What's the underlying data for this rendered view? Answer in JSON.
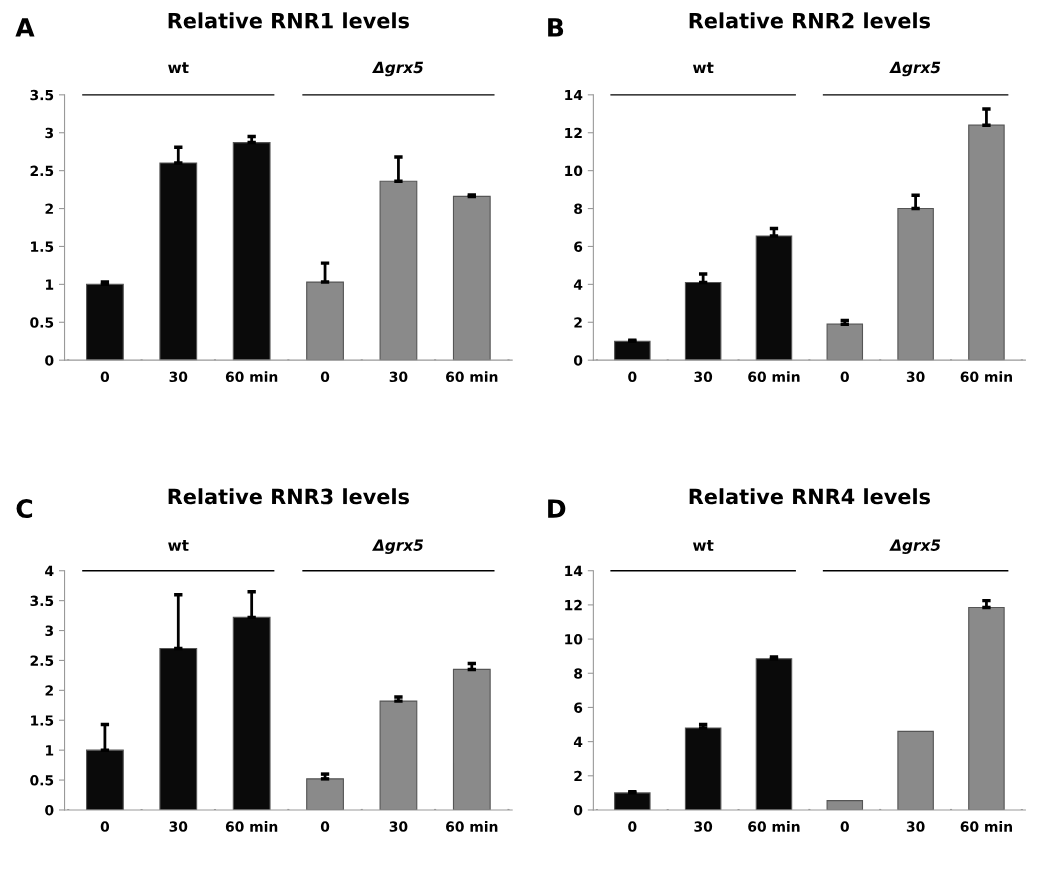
{
  "chart_data": [
    {
      "type": "bar",
      "title": "Relative RNR1 levels",
      "categories": [
        "0",
        "30",
        "60 min",
        "0",
        "30",
        "60 min"
      ],
      "values": [
        1.0,
        2.6,
        2.87,
        1.03,
        2.36,
        2.16
      ],
      "colors": [
        "#0a0a0a",
        "#0a0a0a",
        "#0a0a0a",
        "#8a8a8a",
        "#8a8a8a",
        "#8a8a8a"
      ],
      "errors": [
        [
          1.0,
          1.03
        ],
        [
          2.6,
          2.81
        ],
        [
          2.87,
          2.95
        ],
        [
          1.03,
          1.28
        ],
        [
          2.36,
          2.68
        ],
        [
          2.16,
          2.18
        ]
      ],
      "ylim": [
        0,
        3.5
      ],
      "yticks": [
        0,
        0.5,
        1,
        1.5,
        2,
        2.5,
        3,
        3.5
      ],
      "annotations": [
        "A",
        "wt",
        "Δgrx5"
      ]
    },
    {
      "type": "bar",
      "title": "Relative RNR2 levels",
      "categories": [
        "0",
        "30",
        "60 min",
        "0",
        "30",
        "60 min"
      ],
      "values": [
        1.0,
        4.1,
        6.55,
        1.9,
        8.0,
        12.4
      ],
      "colors": [
        "#0a0a0a",
        "#0a0a0a",
        "#0a0a0a",
        "#8a8a8a",
        "#8a8a8a",
        "#8a8a8a"
      ],
      "errors": [
        [
          1.0,
          1.05
        ],
        [
          4.1,
          4.55
        ],
        [
          6.55,
          6.95
        ],
        [
          1.9,
          2.1
        ],
        [
          8.0,
          8.7
        ],
        [
          12.4,
          13.25
        ]
      ],
      "ylim": [
        0,
        14
      ],
      "yticks": [
        0,
        2,
        4,
        6,
        8,
        10,
        12,
        14
      ],
      "annotations": [
        "B",
        "wt",
        "Δgrx5"
      ]
    },
    {
      "type": "bar",
      "title": "Relative RNR3 levels",
      "categories": [
        "0",
        "30",
        "60 min",
        "0",
        "30",
        "60 min"
      ],
      "values": [
        1.0,
        2.7,
        3.22,
        0.52,
        1.82,
        2.35
      ],
      "colors": [
        "#0a0a0a",
        "#0a0a0a",
        "#0a0a0a",
        "#8a8a8a",
        "#8a8a8a",
        "#8a8a8a"
      ],
      "errors": [
        [
          1.0,
          1.43
        ],
        [
          2.7,
          3.6
        ],
        [
          3.22,
          3.65
        ],
        [
          0.52,
          0.6
        ],
        [
          1.82,
          1.89
        ],
        [
          2.35,
          2.45
        ]
      ],
      "ylim": [
        0,
        4
      ],
      "yticks": [
        0,
        0.5,
        1,
        1.5,
        2,
        2.5,
        3,
        3.5,
        4
      ],
      "annotations": [
        "C",
        "wt",
        "Δgrx5"
      ]
    },
    {
      "type": "bar",
      "title": "Relative RNR4 levels",
      "categories": [
        "0",
        "30",
        "60 min",
        "0",
        "30",
        "60 min"
      ],
      "values": [
        1.0,
        4.8,
        8.85,
        0.55,
        4.6,
        11.85
      ],
      "colors": [
        "#0a0a0a",
        "#0a0a0a",
        "#0a0a0a",
        "#8a8a8a",
        "#8a8a8a",
        "#8a8a8a"
      ],
      "errors": [
        [
          1.0,
          1.06
        ],
        [
          4.8,
          5.0
        ],
        [
          8.85,
          8.95
        ],
        null,
        null,
        [
          11.85,
          12.25
        ]
      ],
      "ylim": [
        0,
        14
      ],
      "yticks": [
        0,
        2,
        4,
        6,
        8,
        10,
        12,
        14
      ],
      "annotations": [
        "D",
        "wt",
        "Δgrx5"
      ]
    }
  ]
}
